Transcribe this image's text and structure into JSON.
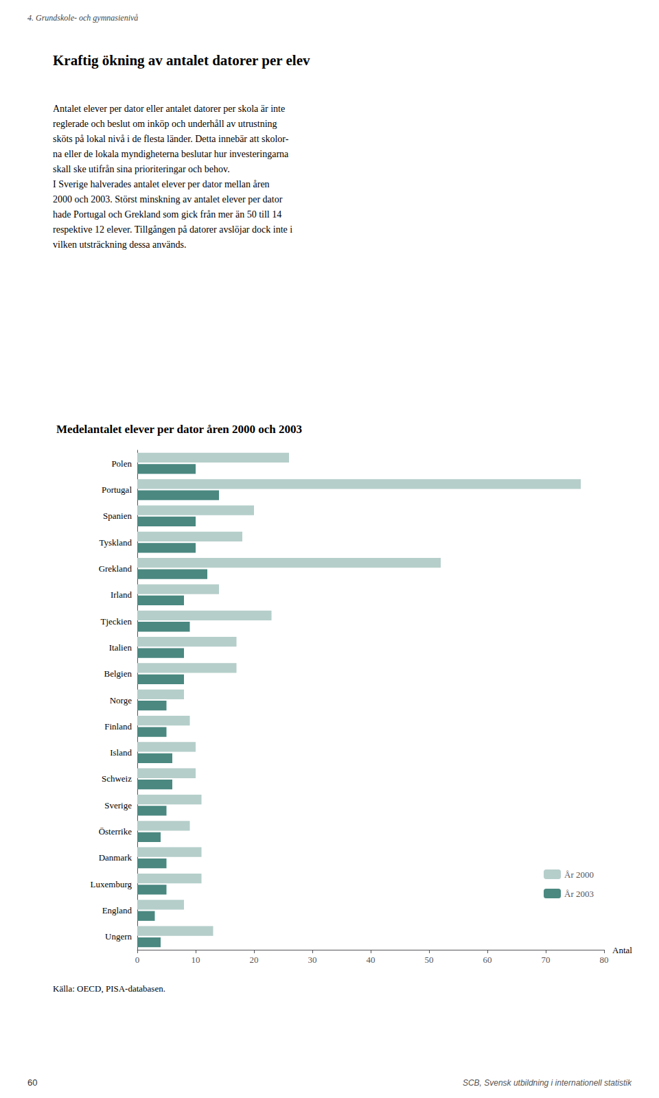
{
  "chart_data": {
    "type": "bar",
    "orientation": "horizontal",
    "title": "Medelantalet elever per dator åren 2000 och 2003",
    "categories": [
      "Polen",
      "Portugal",
      "Spanien",
      "Tyskland",
      "Grekland",
      "Irland",
      "Tjeckien",
      "Italien",
      "Belgien",
      "Norge",
      "Finland",
      "Island",
      "Schweiz",
      "Sverige",
      "Österrike",
      "Danmark",
      "Luxemburg",
      "England",
      "Ungern"
    ],
    "series": [
      {
        "name": "År 2000",
        "color": "#b5ceca",
        "values": [
          26,
          76,
          20,
          18,
          52,
          14,
          23,
          17,
          17,
          8,
          9,
          10,
          10,
          11,
          9,
          11,
          11,
          8,
          13
        ]
      },
      {
        "name": "År 2003",
        "color": "#4a8880",
        "values": [
          10,
          14,
          10,
          10,
          12,
          8,
          9,
          8,
          8,
          5,
          5,
          6,
          6,
          5,
          4,
          5,
          5,
          3,
          4
        ]
      }
    ],
    "xlabel": "Antal",
    "xlim": [
      0,
      80
    ],
    "xticks": [
      0,
      10,
      20,
      30,
      40,
      50,
      60,
      70,
      80
    ],
    "grid": false,
    "legend": "lower right",
    "annotations": [
      "4. Grundskole- och gymnasienivå",
      "Kraftig ökning av antalet datorer per elev",
      "Antalet elever per dator eller antalet datorer per skola är inte",
      "reglerade och beslut om inköp och underhåll av utrustning",
      "sköts på lokal nivå i de flesta länder. Detta innebär att skolor-",
      "na eller de lokala myndigheterna beslutar hur investeringarna",
      "skall ske utifrån sina prioriteringar och behov.",
      "I Sverige halverades antalet elever per dator mellan åren",
      "2000 och 2003. Störst minskning av antalet elever per dator",
      "hade Portugal och Grekland som gick från mer än 50 till 14",
      "respektive 12 elever. Tillgången på datorer avslöjar dock inte i",
      "vilken utsträckning dessa används.",
      "Källa: OECD, PISA-databasen.",
      "60",
      "SCB, Svensk utbildning i internationell statistik"
    ]
  }
}
